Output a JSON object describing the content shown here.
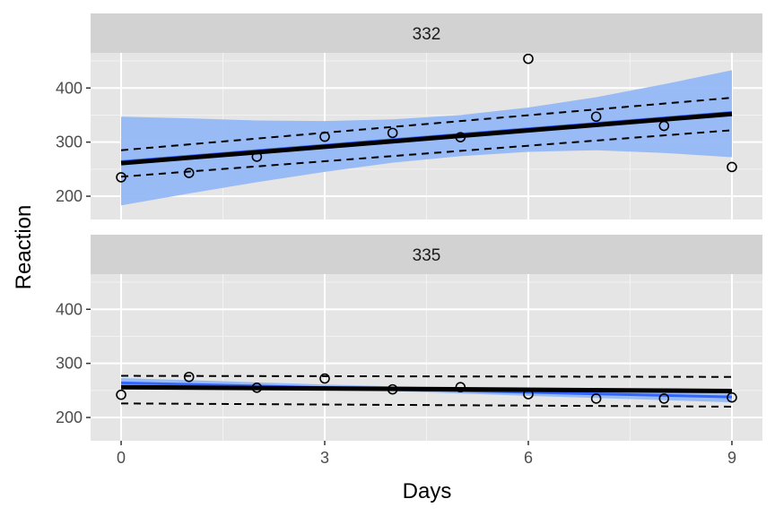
{
  "chart_data": {
    "type": "scatter",
    "xlabel": "Days",
    "ylabel": "Reaction",
    "xlim": [
      -0.45,
      9.45
    ],
    "x_ticks": [
      0,
      3,
      6,
      9
    ],
    "x_tick_labels": [
      "0",
      "3",
      "6",
      "9"
    ],
    "ylim": [
      157,
      465
    ],
    "y_ticks": [
      200,
      300,
      400
    ],
    "y_tick_labels": [
      "200",
      "300",
      "400"
    ],
    "colors": {
      "panel": "#e5e5e5",
      "strip": "#d2d2d2",
      "lm_line": "#3366ff",
      "ribbon": "#94b8f5",
      "fit_line": "#000000",
      "points": "#000000"
    },
    "panels": [
      {
        "label": "332",
        "points": [
          {
            "x": 0,
            "y": 235
          },
          {
            "x": 1,
            "y": 243
          },
          {
            "x": 2,
            "y": 273
          },
          {
            "x": 3,
            "y": 310
          },
          {
            "x": 4,
            "y": 317
          },
          {
            "x": 5,
            "y": 309
          },
          {
            "x": 6,
            "y": 454
          },
          {
            "x": 7,
            "y": 347
          },
          {
            "x": 8,
            "y": 330
          },
          {
            "x": 9,
            "y": 254
          }
        ],
        "lm": {
          "intercept": 264,
          "slope": 10.1
        },
        "ribbon": [
          {
            "x": 0,
            "lo": 183,
            "hi": 347
          },
          {
            "x": 1,
            "lo": 205,
            "hi": 344
          },
          {
            "x": 2,
            "lo": 226,
            "hi": 340
          },
          {
            "x": 3,
            "lo": 245,
            "hi": 339
          },
          {
            "x": 4,
            "lo": 262,
            "hi": 342
          },
          {
            "x": 5,
            "lo": 274,
            "hi": 350
          },
          {
            "x": 6,
            "lo": 282,
            "hi": 364
          },
          {
            "x": 7,
            "lo": 285,
            "hi": 383
          },
          {
            "x": 8,
            "lo": 280,
            "hi": 407
          },
          {
            "x": 9,
            "lo": 272,
            "hi": 433
          }
        ],
        "fit": {
          "y0": 261,
          "y9": 352
        },
        "fit_upper": {
          "y0": 285,
          "y9": 382
        },
        "fit_lower": {
          "y0": 236,
          "y9": 322
        }
      },
      {
        "label": "335",
        "points": [
          {
            "x": 0,
            "y": 242
          },
          {
            "x": 1,
            "y": 275
          },
          {
            "x": 2,
            "y": 255
          },
          {
            "x": 3,
            "y": 272
          },
          {
            "x": 4,
            "y": 252
          },
          {
            "x": 5,
            "y": 256
          },
          {
            "x": 6,
            "y": 243
          },
          {
            "x": 7,
            "y": 235
          },
          {
            "x": 8,
            "y": 235
          },
          {
            "x": 9,
            "y": 237
          }
        ],
        "lm": {
          "intercept": 264,
          "slope": -2.9
        },
        "ribbon": [
          {
            "x": 0,
            "lo": 258,
            "hi": 273
          },
          {
            "x": 3,
            "lo": 253,
            "hi": 261
          },
          {
            "x": 6,
            "lo": 240,
            "hi": 251
          },
          {
            "x": 9,
            "lo": 228,
            "hi": 246
          }
        ],
        "fit": {
          "y0": 256,
          "y9": 249
        },
        "fit_upper": {
          "y0": 277,
          "y9": 275
        },
        "fit_lower": {
          "y0": 226,
          "y9": 220
        }
      }
    ]
  }
}
